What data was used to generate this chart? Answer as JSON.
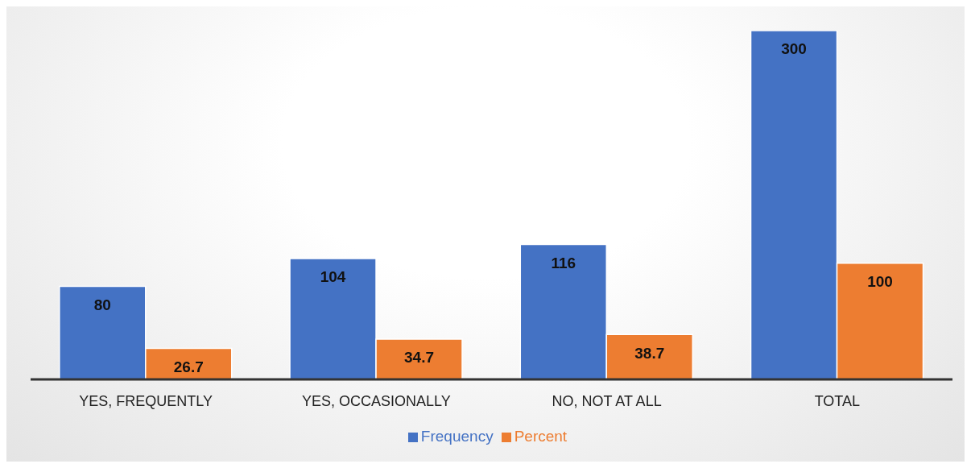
{
  "chart_data": {
    "type": "bar",
    "categories": [
      "YES, FREQUENTLY",
      "YES, OCCASIONALLY",
      "NO, NOT AT ALL",
      "TOTAL"
    ],
    "series": [
      {
        "name": "Frequency",
        "color": "#4472c4",
        "values": [
          80,
          104,
          116,
          300
        ]
      },
      {
        "name": "Percent",
        "color": "#ed7d31",
        "values": [
          26.7,
          34.7,
          38.7,
          100.0
        ]
      }
    ],
    "data_labels": true,
    "legend": "bottom",
    "tick_labels": "x"
  }
}
